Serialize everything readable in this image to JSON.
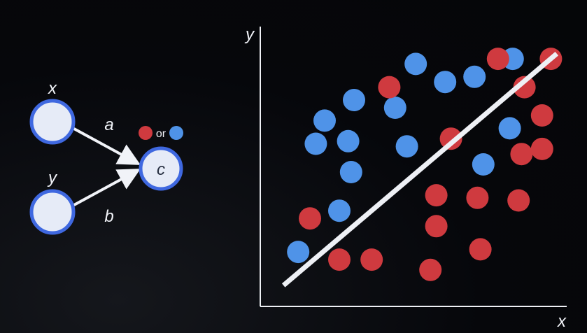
{
  "network": {
    "input_top_label": "x",
    "input_bottom_label": "y",
    "weight_top_label": "a",
    "weight_bottom_label": "b",
    "output_label": "c",
    "or_label": "or"
  },
  "chart_data": {
    "type": "scatter",
    "xlabel": "x",
    "ylabel": "y",
    "xlim": [
      0,
      100
    ],
    "ylim": [
      0,
      100
    ],
    "grid": false,
    "colors": {
      "red": "#cf3a3f",
      "blue": "#4f93e8",
      "line": "#eef0f5",
      "node_fill": "#e6ebf7",
      "node_stroke": "#3f68e0"
    },
    "series": [
      {
        "color": "blue",
        "points": [
          [
            11,
            19
          ],
          [
            25,
            35
          ],
          [
            29,
            50
          ],
          [
            17,
            61
          ],
          [
            28,
            62
          ],
          [
            20,
            70
          ],
          [
            30,
            78
          ],
          [
            44,
            75
          ],
          [
            48,
            60
          ],
          [
            61,
            85
          ],
          [
            51,
            92
          ],
          [
            71,
            87
          ],
          [
            84,
            94
          ],
          [
            83,
            67
          ],
          [
            74,
            53
          ]
        ]
      },
      {
        "color": "red",
        "points": [
          [
            15,
            32
          ],
          [
            25,
            16
          ],
          [
            36,
            16
          ],
          [
            58,
            41
          ],
          [
            58,
            29
          ],
          [
            72,
            40
          ],
          [
            73,
            20
          ],
          [
            86,
            39
          ],
          [
            94,
            59
          ],
          [
            87,
            57
          ],
          [
            94,
            72
          ],
          [
            88,
            83
          ],
          [
            63,
            63
          ],
          [
            56,
            12
          ],
          [
            42,
            83
          ],
          [
            79,
            94
          ],
          [
            97,
            94
          ]
        ]
      }
    ],
    "decision_line": [
      [
        6,
        6
      ],
      [
        99,
        96
      ]
    ]
  }
}
